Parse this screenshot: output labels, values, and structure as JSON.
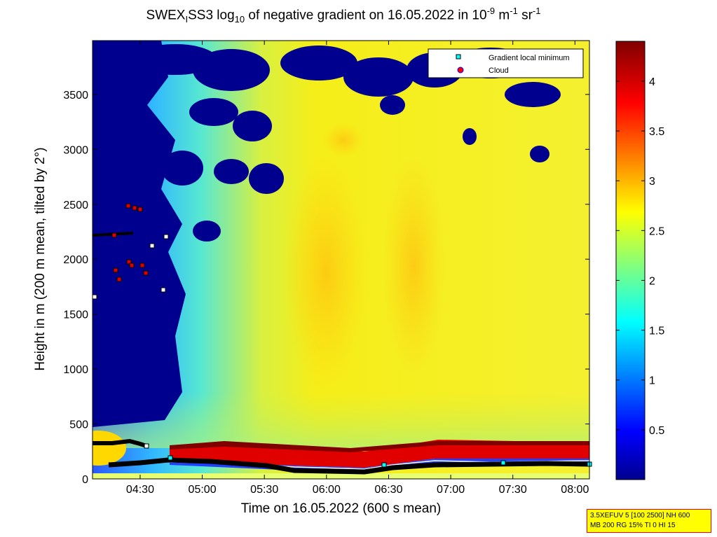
{
  "chart_data": {
    "type": "heatmap",
    "title": {
      "prefix": "SWEX",
      "sub1": "I",
      "mid": "SS3 log",
      "sub2": "10",
      "text": " of negative gradient on 16.05.2022 in 10",
      "sup1": "-9",
      "unit1": " m",
      "sup2": "-1",
      "unit2": " sr",
      "sup3": "-1"
    },
    "xlabel": "Time on 16.05.2022 (600 s mean)",
    "ylabel": "Height in m (200 m mean, tilted by 2°)",
    "x_ticks": [
      "04:30",
      "05:00",
      "05:30",
      "06:00",
      "06:30",
      "07:00",
      "07:30",
      "08:00"
    ],
    "x_tick_hours": [
      4.5,
      5.0,
      5.5,
      6.0,
      6.5,
      7.0,
      7.5,
      8.0
    ],
    "xlim": [
      "04:07",
      "08:07"
    ],
    "y_ticks": [
      "0",
      "500",
      "1000",
      "1500",
      "2000",
      "2500",
      "3000",
      "3500"
    ],
    "ylim": [
      0,
      3990
    ],
    "colorbar": {
      "ticks": [
        "0.5",
        "1",
        "1.5",
        "2",
        "2.5",
        "3",
        "3.5",
        "4"
      ],
      "range": [
        0,
        4.4
      ],
      "colormap": "jet"
    },
    "legend": {
      "position": "top-right",
      "entries": [
        {
          "label": "Gradient local minimum",
          "marker": "cyan-square"
        },
        {
          "label": "Cloud",
          "marker": "red-circle"
        }
      ]
    },
    "colors": {
      "low": "#00008f",
      "mid": "#7fff7f",
      "high": "#800000",
      "gradient_minimum": "#00ffff",
      "cloud": "#ff0000"
    }
  },
  "info_box": {
    "line1": "3.5XEFUV 5 [100 2500] NH 600",
    "line2": "MB 200 RG 15% TI 0 HI 15"
  }
}
